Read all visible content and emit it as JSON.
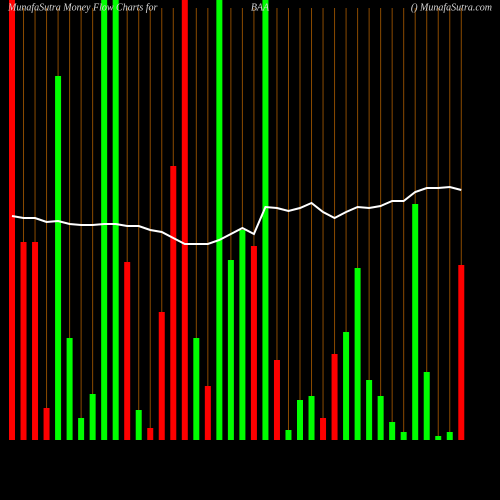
{
  "chart_data": {
    "type": "bar",
    "title": "MunafaSutra  Money Flow Charts for",
    "ticker": "BAA",
    "source": "() MunafaSutra.com",
    "series": [
      {
        "name": "Money flow",
        "colors": [
          "#ff0000",
          "#ff0000",
          "#ff0000",
          "#ff0000",
          "#00ff00",
          "#00ff00",
          "#00ff00",
          "#00ff00",
          "#00ff00",
          "#00ff00",
          "#ff0000",
          "#00ff00",
          "#ff0000",
          "#ff0000",
          "#ff0000",
          "#ff0000",
          "#00ff00",
          "#ff0000",
          "#00ff00",
          "#00ff00",
          "#00ff00",
          "#ff0000",
          "#00ff00",
          "#ff0000",
          "#00ff00",
          "#00ff00",
          "#00ff00",
          "#ff0000",
          "#ff0000",
          "#00ff00",
          "#00ff00",
          "#00ff00",
          "#00ff00",
          "#00ff00",
          "#00ff00",
          "#00ff00",
          "#00ff00",
          "#00ff00",
          "#00ff00",
          "#ff0000"
        ],
        "values": [
          440,
          198,
          198,
          32,
          364,
          102,
          22,
          46,
          440,
          440,
          178,
          30,
          12,
          128,
          274,
          440,
          102,
          54,
          440,
          180,
          210,
          194,
          440,
          80,
          10,
          40,
          44,
          22,
          86,
          108,
          172,
          60,
          44,
          18,
          8,
          236,
          68,
          4,
          8,
          175
        ]
      },
      {
        "name": "Price",
        "color": "#ffffff",
        "values": [
          224,
          222,
          222,
          218,
          219,
          216,
          215,
          215,
          216,
          216,
          214,
          214,
          210,
          208,
          202,
          196,
          196,
          196,
          200,
          206,
          212,
          206,
          233,
          232,
          229,
          232,
          237,
          228,
          222,
          228,
          233,
          232,
          234,
          239,
          239,
          248,
          252,
          252,
          253,
          250
        ]
      }
    ]
  }
}
